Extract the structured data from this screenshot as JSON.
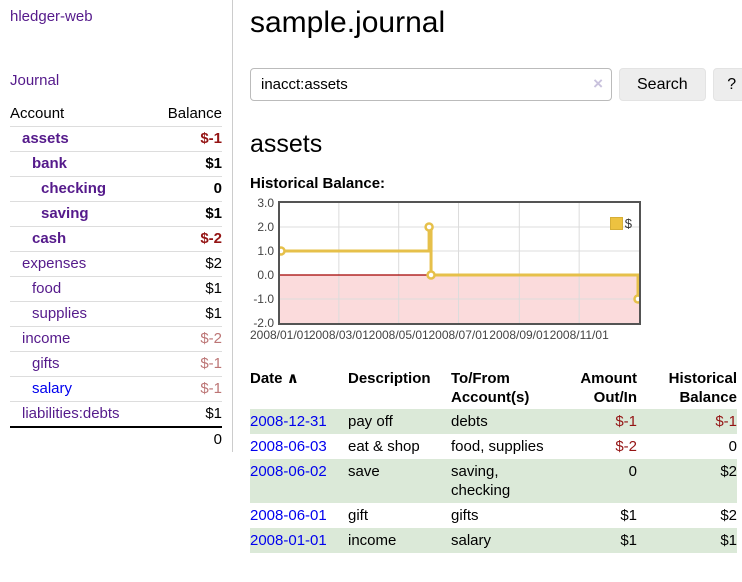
{
  "app": {
    "title": "hledger-web"
  },
  "nav": {
    "journal": "Journal"
  },
  "sidebar": {
    "header": {
      "account": "Account",
      "balance": "Balance"
    },
    "accounts": [
      {
        "name": "assets",
        "balance": "$-1",
        "depth": 1,
        "bold": true,
        "balance_style": "neg",
        "link_style": "visited"
      },
      {
        "name": "bank",
        "balance": "$1",
        "depth": 2,
        "bold": true,
        "balance_style": "pos",
        "link_style": "visited"
      },
      {
        "name": "checking",
        "balance": "0",
        "depth": 3,
        "bold": true,
        "balance_style": "pos",
        "link_style": "visited"
      },
      {
        "name": "saving",
        "balance": "$1",
        "depth": 3,
        "bold": true,
        "balance_style": "pos",
        "link_style": "visited"
      },
      {
        "name": "cash",
        "balance": "$-2",
        "depth": 2,
        "bold": true,
        "balance_style": "neg",
        "link_style": "visited"
      },
      {
        "name": "expenses",
        "balance": "$2",
        "depth": 1,
        "bold": false,
        "balance_style": "pos",
        "link_style": "visited"
      },
      {
        "name": "food",
        "balance": "$1",
        "depth": 2,
        "bold": false,
        "balance_style": "pos",
        "link_style": "visited"
      },
      {
        "name": "supplies",
        "balance": "$1",
        "depth": 2,
        "bold": false,
        "balance_style": "pos",
        "link_style": "visited"
      },
      {
        "name": "income",
        "balance": "$-2",
        "depth": 1,
        "bold": false,
        "balance_style": "neg-soft",
        "link_style": "visited"
      },
      {
        "name": "gifts",
        "balance": "$-1",
        "depth": 2,
        "bold": false,
        "balance_style": "neg-soft",
        "link_style": "visited"
      },
      {
        "name": "salary",
        "balance": "$-1",
        "depth": 2,
        "bold": false,
        "balance_style": "neg-soft",
        "link_style": "unvisited"
      },
      {
        "name": "liabilities:debts",
        "balance": "$1",
        "depth": 1,
        "bold": false,
        "balance_style": "pos",
        "link_style": "visited"
      }
    ],
    "total": "0"
  },
  "header": {
    "title": "sample.journal"
  },
  "search": {
    "query": "inacct:assets",
    "clear_icon": "×",
    "button": "Search",
    "help_button": "?"
  },
  "account_page": {
    "heading": "assets",
    "chart_label": "Historical Balance:"
  },
  "chart_data": {
    "type": "line",
    "step": true,
    "title": "Historical Balance",
    "legend": [
      {
        "label": "$",
        "color": "#edc240"
      }
    ],
    "x_unit": "days since 2008-01-01",
    "points": [
      {
        "date": "2008-01-01",
        "x": 0,
        "y": 1.0
      },
      {
        "date": "2008-06-01",
        "x": 152,
        "y": 2.0
      },
      {
        "date": "2008-06-03",
        "x": 154,
        "y": 0.0
      },
      {
        "date": "2008-12-31",
        "x": 365,
        "y": -1.0
      }
    ],
    "xlim": [
      0,
      366
    ],
    "ylim": [
      -2.0,
      3.0
    ],
    "yticks": [
      {
        "v": 3.0,
        "label": "3.0"
      },
      {
        "v": 2.0,
        "label": "2.0"
      },
      {
        "v": 1.0,
        "label": "1.0"
      },
      {
        "v": 0.0,
        "label": "0.0"
      },
      {
        "v": -1.0,
        "label": "-1.0"
      },
      {
        "v": -2.0,
        "label": "-2.0"
      }
    ],
    "xticks": [
      {
        "v": 0,
        "label": "2008/01/01"
      },
      {
        "v": 60,
        "label": "2008/03/01"
      },
      {
        "v": 121,
        "label": "2008/05/01"
      },
      {
        "v": 182,
        "label": "2008/07/01"
      },
      {
        "v": 244,
        "label": "2008/09/01"
      },
      {
        "v": 305,
        "label": "2008/11/01"
      }
    ],
    "grid": true,
    "legend_position": "top-right",
    "negative_region_fill": "#fbdbdc",
    "zero_line_color": "#a20000",
    "line_color": "#e6c04a",
    "colors": {
      "border": "#545454",
      "gridline": "#dcdcdc"
    }
  },
  "register": {
    "columns": {
      "date": "Date",
      "date_sort_icon": "∧",
      "description": "Description",
      "accounts_line1": "To/From",
      "accounts_line2": "Account(s)",
      "amount_line1": "Amount",
      "amount_line2": "Out/In",
      "balance_line1": "Historical",
      "balance_line2": "Balance"
    },
    "rows": [
      {
        "date": "2008-12-31",
        "description": "pay off",
        "accounts": "debts",
        "amount": "$-1",
        "amount_neg": true,
        "balance": "$-1",
        "balance_neg": true,
        "green": true
      },
      {
        "date": "2008-06-03",
        "description": "eat & shop",
        "accounts": "food, supplies",
        "amount": "$-2",
        "amount_neg": true,
        "balance": "0",
        "balance_neg": false,
        "green": false
      },
      {
        "date": "2008-06-02",
        "description": "save",
        "accounts": "saving, checking",
        "amount": "0",
        "amount_neg": false,
        "balance": "$2",
        "balance_neg": false,
        "green": true
      },
      {
        "date": "2008-06-01",
        "description": "gift",
        "accounts": "gifts",
        "amount": "$1",
        "amount_neg": false,
        "balance": "$2",
        "balance_neg": false,
        "green": false
      },
      {
        "date": "2008-01-01",
        "description": "income",
        "accounts": "salary",
        "amount": "$1",
        "amount_neg": false,
        "balance": "$1",
        "balance_neg": false,
        "green": true
      }
    ]
  },
  "colors": {
    "link_visited": "#551a8b",
    "link_unvisited": "#0000ee",
    "negative": "#941414",
    "negative_soft": "#bc7575",
    "row_green": "#dbe9d8",
    "chart_line": "#e6c04a",
    "chart_negative_fill": "#fbdbdc"
  }
}
